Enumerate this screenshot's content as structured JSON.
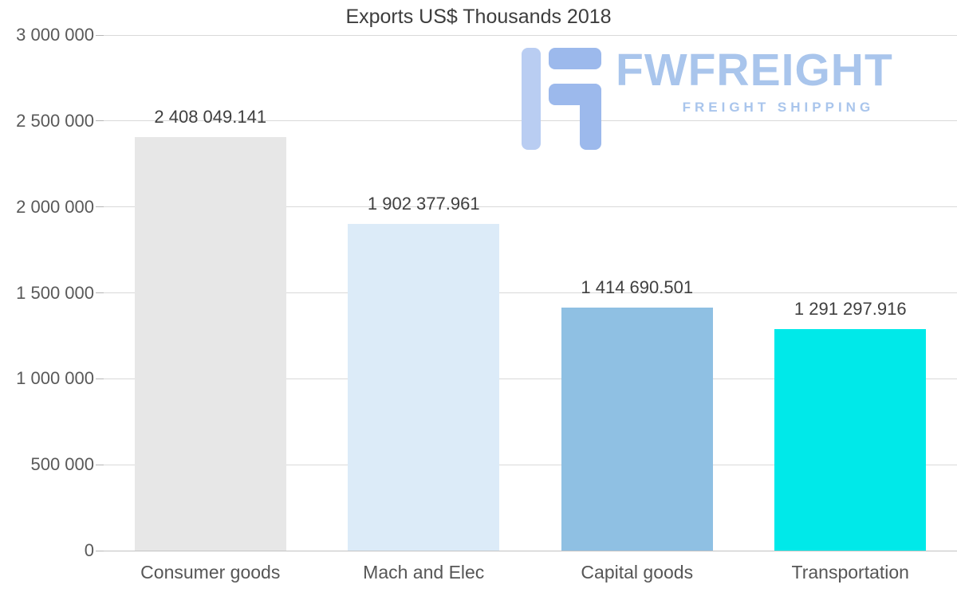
{
  "title": "Exports US$ Thousands 2018",
  "logo": {
    "name": "FWFREIGHT",
    "tagline": "FREIGHT SHIPPING",
    "color": "#a9c5ec",
    "icon": "stylized-f-freight-icon"
  },
  "chart_data": {
    "type": "bar",
    "title": "Exports US$ Thousands 2018",
    "categories": [
      "Consumer goods",
      "Mach and Elec",
      "Capital goods",
      "Transportation"
    ],
    "values": [
      2408049.141,
      1902377.961,
      1414690.501,
      1291297.916
    ],
    "value_labels": [
      "2 408 049.141",
      "1 902 377.961",
      "1 414 690.501",
      "1 291 297.916"
    ],
    "bar_colors": [
      "#e7e7e7",
      "#dcebf8",
      "#8fc0e3",
      "#00e9e9"
    ],
    "xlabel": "",
    "ylabel": "",
    "ylim": [
      0,
      3000000
    ],
    "ytick_step": 500000,
    "ytick_labels": [
      "0",
      "500 000",
      "1 000 000",
      "1 500 000",
      "2 000 000",
      "2 500 000",
      "3 000 000"
    ],
    "grid": true,
    "legend": "none",
    "grid_color": "#d9d9d9",
    "axis_color": "#c2c2c2"
  }
}
